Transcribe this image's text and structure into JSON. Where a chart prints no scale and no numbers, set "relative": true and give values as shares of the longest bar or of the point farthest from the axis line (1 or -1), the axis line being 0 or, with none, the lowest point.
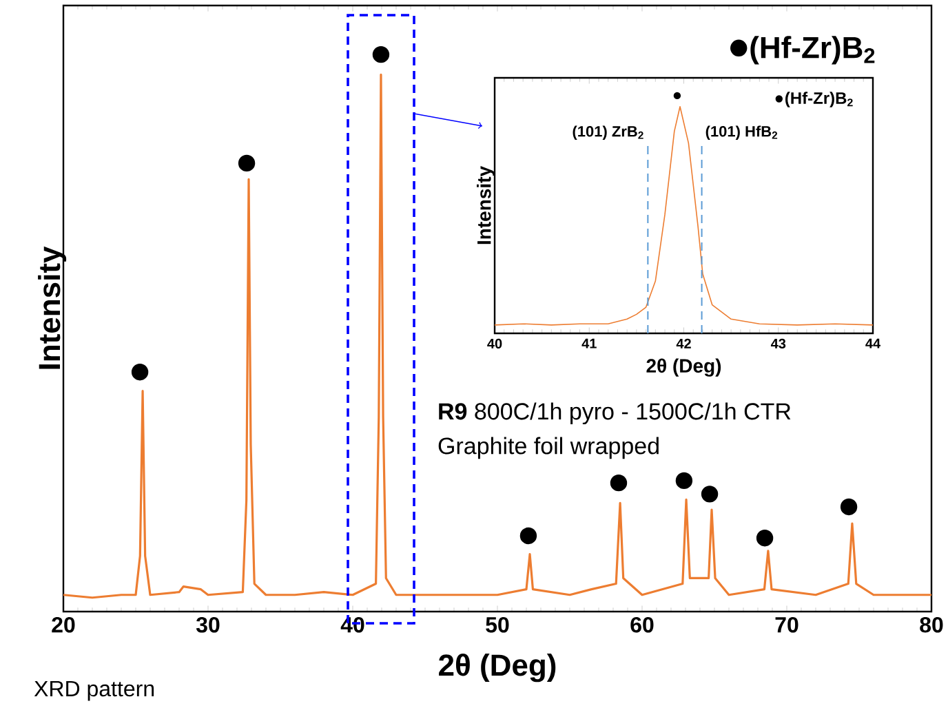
{
  "chart_data": [
    {
      "type": "line",
      "relative": true,
      "xlabel": "2θ (Deg)",
      "ylabel": "Intensity",
      "xlim": [
        20,
        80
      ],
      "xticks": [
        20,
        30,
        40,
        50,
        60,
        70,
        80
      ],
      "tick_labels": "x",
      "legend": "top right",
      "marker": "circle",
      "series": [
        {
          "color": "#ed7d31",
          "marker": "none",
          "x": [
            20,
            22,
            24,
            25,
            25.3,
            25.48,
            25.65,
            26,
            28,
            28.3,
            29.5,
            30,
            32.4,
            32.65,
            32.81,
            32.95,
            33.2,
            34,
            36,
            38,
            40,
            41.6,
            41.8,
            41.95,
            42.1,
            42.3,
            43,
            46,
            50,
            52,
            52.24,
            52.45,
            55,
            56.5,
            58.2,
            58.48,
            58.7,
            60,
            62.8,
            63.05,
            63.3,
            64.6,
            64.81,
            65.05,
            66,
            68.45,
            68.71,
            68.95,
            72,
            74.25,
            74.52,
            74.8,
            76,
            80
          ],
          "values": [
            0.03,
            0.025,
            0.03,
            0.03,
            0.1,
            0.396,
            0.1,
            0.03,
            0.035,
            0.045,
            0.04,
            0.03,
            0.035,
            0.2,
            0.776,
            0.3,
            0.05,
            0.03,
            0.03,
            0.035,
            0.03,
            0.05,
            0.35,
            0.964,
            0.35,
            0.06,
            0.03,
            0.03,
            0.03,
            0.04,
            0.103,
            0.04,
            0.03,
            0.04,
            0.05,
            0.195,
            0.06,
            0.03,
            0.05,
            0.201,
            0.06,
            0.06,
            0.183,
            0.06,
            0.03,
            0.04,
            0.109,
            0.04,
            0.03,
            0.05,
            0.158,
            0.05,
            0.03,
            0.03
          ]
        },
        {
          "type": "scatter",
          "name": "(Hf-Zr)B$_{2}$",
          "color": "#000000",
          "x": [
            25.29,
            32.67,
            41.95,
            52.14,
            58.38,
            62.9,
            64.67,
            68.48,
            74.29
          ],
          "values": [
            0.43,
            0.805,
            1,
            0.136,
            0.231,
            0.235,
            0.211,
            0.132,
            0.188
          ]
        }
      ],
      "annotations": [
        "**R9** 800C/1h pyro - 1500C/1h CTR",
        "Graphite foil wrapped",
        "XRD pattern"
      ]
    },
    {
      "type": "line",
      "relative": true,
      "xlabel": "2θ (Deg)",
      "ylabel": "Intensity",
      "xlim": [
        40,
        44
      ],
      "xticks": [
        40,
        41,
        42,
        43,
        44
      ],
      "tick_labels": "x",
      "legend": "top right",
      "marker": "circle",
      "series": [
        {
          "color": "#ed7d31",
          "marker": "none",
          "x": [
            40,
            40.3,
            40.6,
            40.9,
            41.2,
            41.4,
            41.5,
            41.6,
            41.7,
            41.8,
            41.9,
            41.96,
            42.05,
            42.15,
            42.2,
            42.3,
            42.5,
            42.8,
            43.2,
            43.6,
            44
          ],
          "values": [
            0.035,
            0.04,
            0.035,
            0.04,
            0.04,
            0.06,
            0.08,
            0.11,
            0.22,
            0.5,
            0.85,
            0.954,
            0.8,
            0.45,
            0.25,
            0.12,
            0.06,
            0.04,
            0.035,
            0.04,
            0.035
          ]
        },
        {
          "type": "scatter",
          "name": "(Hf-Zr)B$_{2}$",
          "color": "#000000",
          "x": [
            41.93
          ],
          "values": [
            1
          ]
        }
      ],
      "ref_lines": [
        {
          "axis": "x",
          "value": 41.62,
          "label": "(101) ZrB$_{2}$",
          "color": "#5b9bd5",
          "line_style": "dashed"
        },
        {
          "axis": "x",
          "value": 42.19,
          "label": "(101) HfB$_{2}$",
          "color": "#5b9bd5",
          "line_style": "dashed"
        }
      ]
    }
  ]
}
